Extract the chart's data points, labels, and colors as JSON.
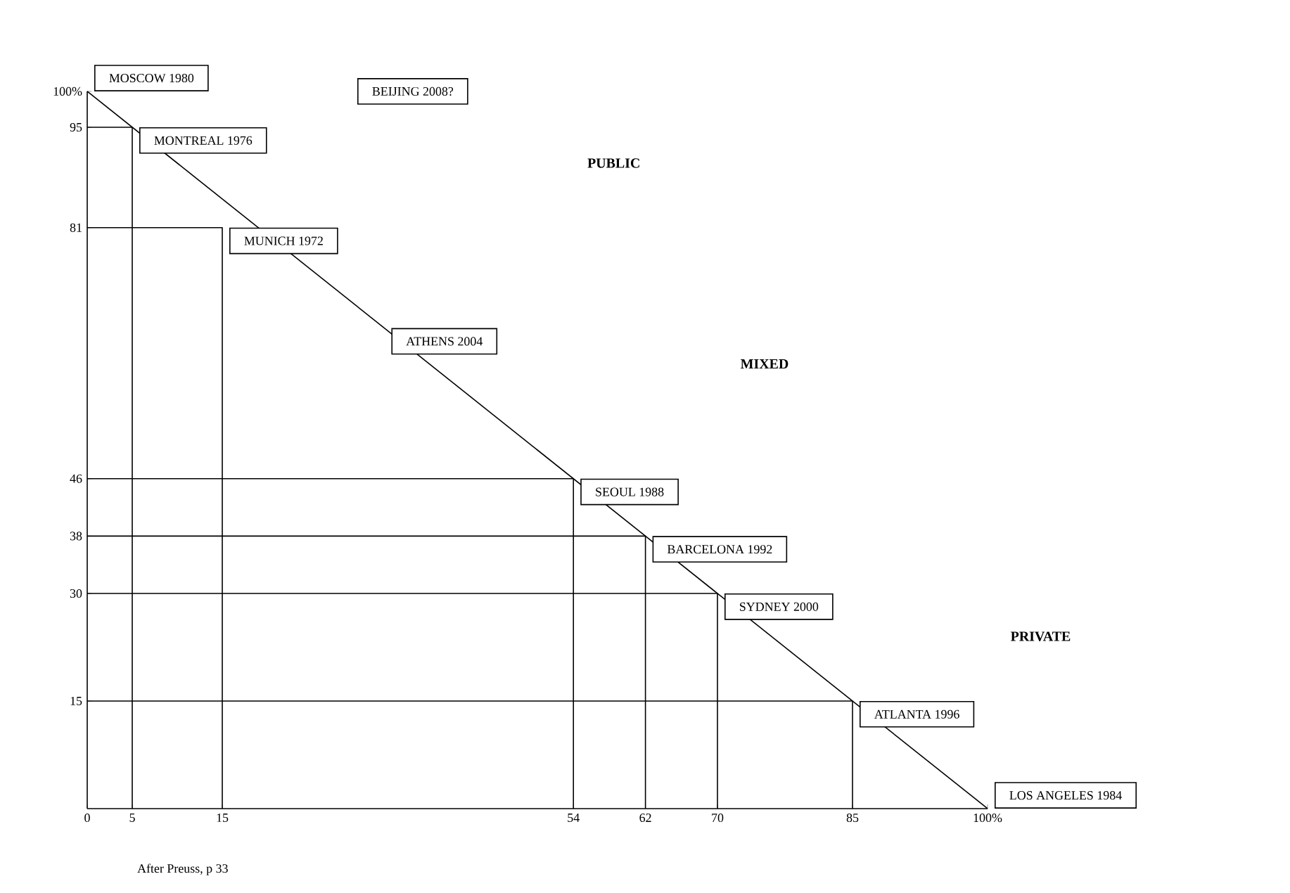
{
  "chart_data": {
    "type": "line",
    "x": [
      0,
      100
    ],
    "series": [
      {
        "color": "#000000",
        "values": [
          100,
          0
        ]
      },
      {
        "color": "#000000",
        "x": [
          5,
          5,
          0
        ],
        "values": [
          0,
          95,
          95
        ]
      },
      {
        "color": "#000000",
        "x": [
          15,
          15,
          0
        ],
        "values": [
          0,
          81,
          81
        ]
      },
      {
        "color": "#000000",
        "x": [
          54,
          54,
          0
        ],
        "values": [
          0,
          46,
          46
        ]
      },
      {
        "color": "#000000",
        "x": [
          62,
          62,
          0
        ],
        "values": [
          0,
          38,
          38
        ]
      },
      {
        "color": "#000000",
        "x": [
          70,
          70,
          0
        ],
        "values": [
          0,
          30,
          30
        ]
      },
      {
        "color": "#000000",
        "x": [
          85,
          85,
          0
        ],
        "values": [
          0,
          15,
          15
        ]
      }
    ],
    "xlim": [
      0,
      100
    ],
    "ylim": [
      0,
      100
    ],
    "xticks": [
      0,
      5,
      15,
      54,
      62,
      70,
      85,
      {
        "value": 100,
        "label": "100%"
      }
    ],
    "yticks": [
      15,
      30,
      38,
      46,
      81,
      95,
      {
        "value": 100,
        "label": "100%"
      }
    ],
    "annotations": [
      {
        "text": "MOSCOW 1980",
        "x": 0,
        "y": 100
      },
      {
        "text": "MONTREAL 1976",
        "x": 5,
        "y": 95
      },
      {
        "text": "MUNICH 1972",
        "x": 15,
        "y": 81
      },
      {
        "text": "ATHENS 2004",
        "x": 33,
        "y": 67
      },
      {
        "text": "SEOUL 1988",
        "x": 54,
        "y": 46
      },
      {
        "text": "BARCELONA 1992",
        "x": 62,
        "y": 38
      },
      {
        "text": "SYDNEY 2000",
        "x": 70,
        "y": 30
      },
      {
        "text": "ATLANTA 1996",
        "x": 85,
        "y": 15
      },
      {
        "text": "LOS ANGELES 1984",
        "x": 100,
        "y": 0
      },
      "BEIJING 2008?",
      "PUBLIC",
      "MIXED",
      "PRIVATE",
      "After Preuss, p 33"
    ],
    "grid": false,
    "marker": "none",
    "line_style": "solid"
  }
}
